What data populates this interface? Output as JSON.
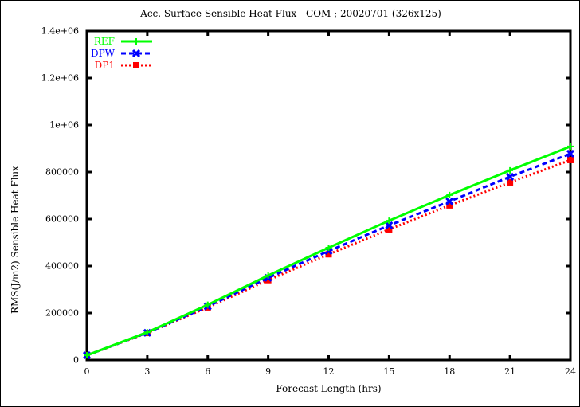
{
  "chart_data": {
    "type": "line",
    "title": "Acc. Surface Sensible Heat Flux - COM ; 20020701 (326x125)",
    "xlabel": "Forecast Length (hrs)",
    "ylabel": "RMS(J/m2) Sensible Heat Flux",
    "x": [
      0,
      3,
      6,
      9,
      12,
      15,
      18,
      21,
      24
    ],
    "xlim": [
      0,
      24
    ],
    "ylim": [
      0,
      1400000
    ],
    "x_ticks": [
      "0",
      "3",
      "6",
      "9",
      "12",
      "15",
      "18",
      "21",
      "24"
    ],
    "y_ticks": [
      "0",
      "200000",
      "400000",
      "600000",
      "800000",
      "1e+06",
      "1.2e+06",
      "1.4e+06"
    ],
    "grid": false,
    "legend_position": "top-left",
    "series": [
      {
        "name": "REF",
        "color": "#00ff00",
        "style": "solid",
        "marker": "plus",
        "values": [
          20000,
          118000,
          235000,
          360000,
          478000,
          593000,
          702000,
          807000,
          909000
        ]
      },
      {
        "name": "DPW",
        "color": "#0000ff",
        "style": "dashed",
        "marker": "cross",
        "values": [
          20000,
          116000,
          228000,
          350000,
          464000,
          573000,
          675000,
          780000,
          878000
        ]
      },
      {
        "name": "DP1",
        "color": "#ff0000",
        "style": "dotted",
        "marker": "star",
        "values": [
          20000,
          115000,
          224000,
          340000,
          450000,
          556000,
          658000,
          756000,
          851000
        ]
      }
    ]
  }
}
